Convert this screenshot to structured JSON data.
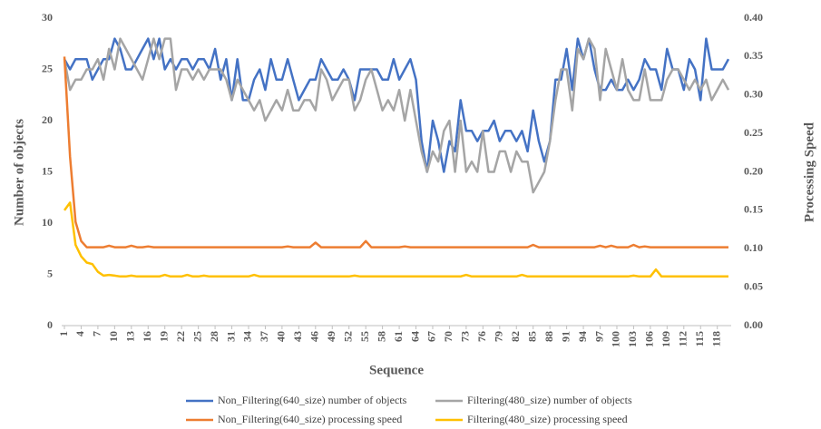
{
  "chart_data": {
    "type": "line",
    "xlabel": "Sequence",
    "ylabel": "Number of objects",
    "y2label": "Processing Speed",
    "x": [
      1,
      2,
      3,
      4,
      5,
      6,
      7,
      8,
      9,
      10,
      11,
      12,
      13,
      14,
      15,
      16,
      17,
      18,
      19,
      20,
      21,
      22,
      23,
      24,
      25,
      26,
      27,
      28,
      29,
      30,
      31,
      32,
      33,
      34,
      35,
      36,
      37,
      38,
      39,
      40,
      41,
      42,
      43,
      44,
      45,
      46,
      47,
      48,
      49,
      50,
      51,
      52,
      53,
      54,
      55,
      56,
      57,
      58,
      59,
      60,
      61,
      62,
      63,
      64,
      65,
      66,
      67,
      68,
      69,
      70,
      71,
      72,
      73,
      74,
      75,
      76,
      77,
      78,
      79,
      80,
      81,
      82,
      83,
      84,
      85,
      86,
      87,
      88,
      89,
      90,
      91,
      92,
      93,
      94,
      95,
      96,
      97,
      98,
      99,
      100,
      101,
      102,
      103,
      104,
      105,
      106,
      107,
      108,
      109,
      110,
      111,
      112,
      113,
      114,
      115,
      116,
      117,
      118,
      119,
      120
    ],
    "xlim": [
      1,
      120
    ],
    "xticks": [
      1,
      4,
      7,
      10,
      13,
      16,
      19,
      22,
      25,
      28,
      31,
      34,
      37,
      40,
      43,
      46,
      49,
      52,
      55,
      58,
      61,
      64,
      67,
      70,
      73,
      76,
      79,
      82,
      85,
      88,
      91,
      94,
      97,
      100,
      103,
      106,
      109,
      112,
      115,
      118
    ],
    "ylim": [
      0,
      30
    ],
    "yticks": [
      0,
      5,
      10,
      15,
      20,
      25,
      30
    ],
    "y2lim": [
      0,
      0.4
    ],
    "y2ticks": [
      {
        "value": 0,
        "label": "0.00"
      },
      {
        "value": 0.05,
        "label": "0.05"
      },
      {
        "value": 0.1,
        "label": "0.10"
      },
      {
        "value": 0.15,
        "label": "0.15"
      },
      {
        "value": 0.2,
        "label": "0.20"
      },
      {
        "value": 0.25,
        "label": "0.25"
      },
      {
        "value": 0.3,
        "label": "0.30"
      },
      {
        "value": 0.35,
        "label": "0.35"
      },
      {
        "value": 0.4,
        "label": "0.40"
      }
    ],
    "grid": false,
    "legend": "bottom",
    "series": [
      {
        "name": "Non_Filtering(640_size) number of objects",
        "color": "#4472c4",
        "values": [
          26,
          25,
          26,
          26,
          26,
          24,
          25,
          26,
          26,
          28,
          27,
          25,
          25,
          26,
          27,
          28,
          26,
          28,
          25,
          26,
          25,
          26,
          26,
          25,
          26,
          26,
          25,
          27,
          24,
          26,
          22,
          26,
          22,
          22,
          24,
          25,
          23,
          26,
          24,
          24,
          26,
          24,
          22,
          23,
          24,
          24,
          26,
          25,
          24,
          24,
          25,
          24,
          22,
          25,
          25,
          25,
          25,
          24,
          24,
          26,
          24,
          25,
          26,
          24,
          18,
          15,
          20,
          18,
          15,
          18,
          17,
          22,
          19,
          19,
          18,
          19,
          19,
          20,
          18,
          19,
          19,
          18,
          19,
          17,
          21,
          18,
          16,
          18,
          24,
          24,
          27,
          23,
          28,
          26,
          28,
          25,
          23,
          23,
          24,
          23,
          23,
          24,
          23,
          24,
          26,
          25,
          25,
          23,
          27,
          25,
          25,
          23,
          26,
          25,
          22,
          28,
          25,
          25,
          25,
          26
        ]
      },
      {
        "name": "Filtering(480_size) number of objects",
        "color": "#a5a5a5",
        "values": [
          26,
          23,
          24,
          24,
          25,
          25,
          26,
          24,
          27,
          25,
          28,
          27,
          26,
          25,
          24,
          26,
          28,
          26,
          28,
          28,
          23,
          25,
          25,
          24,
          25,
          24,
          25,
          25,
          25,
          24,
          22,
          24,
          23,
          22,
          21,
          22,
          20,
          21,
          22,
          21,
          23,
          21,
          21,
          22,
          22,
          21,
          25,
          24,
          22,
          23,
          24,
          24,
          21,
          22,
          24,
          25,
          23,
          21,
          22,
          21,
          23,
          20,
          23,
          20,
          17,
          15,
          17,
          16,
          19,
          20,
          15,
          20,
          15,
          16,
          15,
          19,
          15,
          15,
          17,
          17,
          15,
          17,
          16,
          16,
          13,
          14,
          15,
          18,
          22,
          25,
          25,
          21,
          27,
          26,
          28,
          27,
          22,
          27,
          25,
          23,
          26,
          23,
          22,
          22,
          25,
          22,
          22,
          22,
          24,
          25,
          25,
          24,
          23,
          24,
          23,
          24,
          22,
          23,
          24,
          23
        ]
      },
      {
        "name": "Non_Filtering(640_size) processing speed",
        "color": "#ed7d31",
        "axis": "y2",
        "values": [
          0.35,
          0.22,
          0.135,
          0.11,
          0.102,
          0.102,
          0.102,
          0.102,
          0.104,
          0.102,
          0.102,
          0.102,
          0.104,
          0.102,
          0.102,
          0.103,
          0.102,
          0.102,
          0.102,
          0.102,
          0.102,
          0.102,
          0.102,
          0.102,
          0.102,
          0.102,
          0.102,
          0.102,
          0.102,
          0.102,
          0.102,
          0.102,
          0.102,
          0.102,
          0.102,
          0.102,
          0.102,
          0.102,
          0.102,
          0.102,
          0.103,
          0.102,
          0.102,
          0.102,
          0.102,
          0.108,
          0.102,
          0.102,
          0.102,
          0.102,
          0.102,
          0.102,
          0.102,
          0.102,
          0.11,
          0.102,
          0.102,
          0.102,
          0.102,
          0.102,
          0.102,
          0.103,
          0.102,
          0.102,
          0.102,
          0.102,
          0.102,
          0.102,
          0.102,
          0.102,
          0.102,
          0.102,
          0.102,
          0.102,
          0.102,
          0.102,
          0.102,
          0.102,
          0.102,
          0.102,
          0.102,
          0.102,
          0.102,
          0.102,
          0.105,
          0.102,
          0.102,
          0.102,
          0.102,
          0.102,
          0.102,
          0.102,
          0.102,
          0.102,
          0.102,
          0.102,
          0.104,
          0.102,
          0.104,
          0.102,
          0.102,
          0.102,
          0.105,
          0.102,
          0.103,
          0.102,
          0.102,
          0.102,
          0.102,
          0.102,
          0.102,
          0.102,
          0.102,
          0.102,
          0.102,
          0.102,
          0.102,
          0.102,
          0.102,
          0.102
        ]
      },
      {
        "name": "Filtering(480_size) processing speed",
        "color": "#ffc000",
        "axis": "y2",
        "values": [
          0.15,
          0.16,
          0.105,
          0.09,
          0.082,
          0.08,
          0.07,
          0.065,
          0.066,
          0.065,
          0.064,
          0.064,
          0.065,
          0.064,
          0.064,
          0.064,
          0.064,
          0.064,
          0.066,
          0.064,
          0.064,
          0.064,
          0.066,
          0.064,
          0.064,
          0.065,
          0.064,
          0.064,
          0.064,
          0.064,
          0.064,
          0.064,
          0.064,
          0.064,
          0.066,
          0.064,
          0.064,
          0.064,
          0.064,
          0.064,
          0.064,
          0.064,
          0.064,
          0.064,
          0.064,
          0.064,
          0.064,
          0.064,
          0.064,
          0.064,
          0.064,
          0.064,
          0.065,
          0.064,
          0.064,
          0.064,
          0.064,
          0.064,
          0.064,
          0.064,
          0.064,
          0.064,
          0.064,
          0.064,
          0.064,
          0.064,
          0.064,
          0.064,
          0.064,
          0.064,
          0.064,
          0.064,
          0.066,
          0.064,
          0.064,
          0.064,
          0.064,
          0.064,
          0.064,
          0.064,
          0.064,
          0.064,
          0.066,
          0.064,
          0.064,
          0.064,
          0.064,
          0.064,
          0.064,
          0.064,
          0.064,
          0.064,
          0.064,
          0.064,
          0.064,
          0.064,
          0.064,
          0.064,
          0.064,
          0.064,
          0.064,
          0.064,
          0.065,
          0.064,
          0.064,
          0.064,
          0.073,
          0.064,
          0.064,
          0.064,
          0.064,
          0.064,
          0.064,
          0.064,
          0.064,
          0.064,
          0.064,
          0.064,
          0.064,
          0.064
        ]
      }
    ]
  }
}
